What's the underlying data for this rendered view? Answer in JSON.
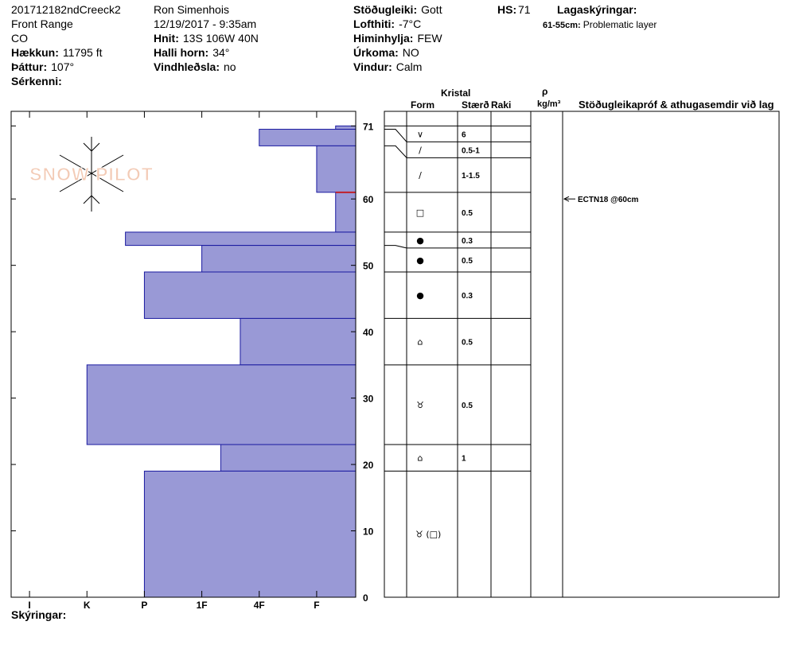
{
  "header": {
    "col1": [
      {
        "value": "201712182ndCreeck2"
      },
      {
        "value": "Front Range"
      },
      {
        "value": "CO"
      },
      {
        "label": "Hækkun:",
        "value": "11795 ft"
      },
      {
        "label": "Þáttur:",
        "value": "107°"
      },
      {
        "label": "Sérkenni:"
      }
    ],
    "col2": [
      {
        "value": "Ron Simenhois"
      },
      {
        "value": "12/19/2017 - 9:35am"
      },
      {
        "label": "Hnit:",
        "value": "13S 106W 40N"
      },
      {
        "label": "Halli horn:",
        "value": "34°"
      },
      {
        "label": "Vindhleðsla:",
        "value": "no"
      }
    ],
    "col3": [
      {
        "label": "Stöðugleiki:",
        "value": "Gott"
      },
      {
        "label": "Lofthiti:",
        "value": "-7°C"
      },
      {
        "label": "Himinhylja:",
        "value": "FEW"
      },
      {
        "label": "Úrkoma:",
        "value": "NO"
      },
      {
        "label": "Vindur:",
        "value": "Calm"
      }
    ],
    "hs": {
      "label": "HS:",
      "value": 71
    },
    "legend": {
      "title": "Lagaskýringar:",
      "key": "61-55cm:",
      "text": "Problematic layer"
    }
  },
  "logo": "SNOW PILOT",
  "columns": {
    "crystal": "Kristal",
    "form": "Form",
    "size": "Stærð",
    "moisture": "Raki",
    "rho": "ρ",
    "density": "kg/m³",
    "tests": "Stöðugleikapróf & athugasemdir við lag"
  },
  "chart_data": {
    "type": "snow_profile",
    "ylim": [
      0,
      73.2
    ],
    "yticks": [
      0,
      10,
      20,
      30,
      40,
      50,
      60,
      71
    ],
    "xlim": [
      6.32,
      0.32
    ],
    "xticks": [
      {
        "value": 6,
        "label": "I"
      },
      {
        "value": 5,
        "label": "K"
      },
      {
        "value": 4,
        "label": "P"
      },
      {
        "value": 3,
        "label": "1F"
      },
      {
        "value": 2,
        "label": "4F"
      },
      {
        "value": 1,
        "label": "F"
      }
    ],
    "color": "#9999d6",
    "edge": "#1a1aa0",
    "layers": [
      {
        "top": 71,
        "bottom": 70.5,
        "hardness": 0.67,
        "form": "∨",
        "size": "6"
      },
      {
        "top": 70.5,
        "bottom": 68,
        "hardness": 2,
        "form": "∕",
        "size": "0.5-1"
      },
      {
        "top": 68,
        "bottom": 61,
        "hardness": 1,
        "form": "∕",
        "size": "1-1.5"
      },
      {
        "top": 61,
        "bottom": 55,
        "hardness": 0.67,
        "form": "□",
        "size": "0.5"
      },
      {
        "top": 55,
        "bottom": 53,
        "hardness": 4.33,
        "form": "●",
        "size": "0.3"
      },
      {
        "top": 53,
        "bottom": 49,
        "hardness": 3,
        "form": "●",
        "size": "0.5"
      },
      {
        "top": 49,
        "bottom": 42,
        "hardness": 4,
        "form": "●",
        "size": "0.3"
      },
      {
        "top": 42,
        "bottom": 35,
        "hardness": 2.33,
        "form": "⌂",
        "size": "0.5"
      },
      {
        "top": 35,
        "bottom": 23,
        "hardness": 5,
        "form": "♉",
        "size": "0.5"
      },
      {
        "top": 23,
        "bottom": 19,
        "hardness": 2.67,
        "form": "⌂",
        "size": "1"
      },
      {
        "top": 19,
        "bottom": 0,
        "hardness": 4,
        "form": "♉ (□)"
      }
    ],
    "problem_layer": {
      "top": 61,
      "bottom": 55,
      "color": "#c0202a"
    },
    "tests": [
      {
        "depth": 60,
        "label": "ECTN18 @60cm"
      }
    ]
  },
  "footer": "Skýringar:"
}
